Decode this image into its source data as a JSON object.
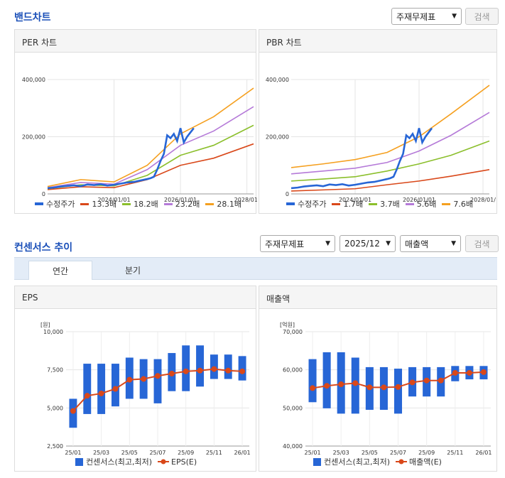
{
  "band": {
    "title": "밴드차트",
    "select": "주재무제표",
    "search": "검색",
    "per": {
      "title": "PER 차트",
      "legend": [
        {
          "label": "수정주가",
          "color": "#2766d6"
        },
        {
          "label": "13.3배",
          "color": "#d9481a"
        },
        {
          "label": "18.2배",
          "color": "#8bbf2c"
        },
        {
          "label": "23.2배",
          "color": "#b57ad8"
        },
        {
          "label": "28.1배",
          "color": "#f5a020"
        }
      ]
    },
    "pbr": {
      "title": "PBR 차트",
      "legend": [
        {
          "label": "수정주가",
          "color": "#2766d6"
        },
        {
          "label": "1.7배",
          "color": "#d9481a"
        },
        {
          "label": "3.7배",
          "color": "#8bbf2c"
        },
        {
          "label": "5.6배",
          "color": "#b57ad8"
        },
        {
          "label": "7.6배",
          "color": "#f5a020"
        }
      ]
    }
  },
  "consensus": {
    "title": "컨센서스 추이",
    "select1": "주재무제표",
    "select2": "2025/12",
    "select3": "매출액",
    "search": "검색",
    "tabs": [
      "연간",
      "분기"
    ],
    "eps": {
      "title": "EPS",
      "legend": [
        "컨센서스(최고,최저)",
        "EPS(E)"
      ]
    },
    "sales": {
      "title": "매출액",
      "legend": [
        "컨센서스(최고,최저)",
        "매출액(E)"
      ]
    }
  },
  "chart_data": [
    {
      "type": "line",
      "id": "per",
      "x_ticks": [
        "2024/01/01",
        "2026/01/01",
        "2028/01/"
      ],
      "y_ticks": [
        "0",
        "200,000",
        "400,000"
      ],
      "ylim": [
        0,
        400000
      ],
      "x": [
        2022.0,
        2023.0,
        2024.0,
        2025.0,
        2026.0,
        2027.0,
        2028.2
      ],
      "series": [
        {
          "name": "13.3배",
          "values": [
            15000,
            25000,
            22000,
            50000,
            100000,
            125000,
            175000
          ]
        },
        {
          "name": "18.2배",
          "values": [
            18000,
            32000,
            28000,
            65000,
            135000,
            170000,
            240000
          ]
        },
        {
          "name": "23.2배",
          "values": [
            22000,
            40000,
            34000,
            85000,
            170000,
            220000,
            305000
          ]
        },
        {
          "name": "28.1배",
          "values": [
            26000,
            50000,
            42000,
            100000,
            210000,
            270000,
            370000
          ]
        }
      ],
      "price": {
        "name": "수정주가",
        "x": [
          2022.0,
          2022.2,
          2022.4,
          2022.6,
          2022.8,
          2023.0,
          2023.2,
          2023.4,
          2023.6,
          2023.8,
          2024.0,
          2024.2,
          2024.4,
          2024.6,
          2024.8,
          2025.0,
          2025.1,
          2025.2,
          2025.3,
          2025.4,
          2025.5,
          2025.6,
          2025.7,
          2025.8,
          2025.9,
          2026.0,
          2026.1,
          2026.2,
          2026.3,
          2026.4
        ],
        "values": [
          20000,
          22000,
          26000,
          28000,
          30000,
          27000,
          33000,
          31000,
          34000,
          29000,
          32000,
          36000,
          40000,
          42000,
          47000,
          52000,
          55000,
          60000,
          85000,
          115000,
          140000,
          205000,
          195000,
          210000,
          185000,
          230000,
          180000,
          200000,
          215000,
          230000
        ]
      }
    },
    {
      "type": "line",
      "id": "pbr",
      "x_ticks": [
        "2024/01/01",
        "2026/01/01",
        "2028/01/"
      ],
      "y_ticks": [
        "0",
        "200,000",
        "400,000"
      ],
      "ylim": [
        0,
        400000
      ],
      "x": [
        2022.0,
        2023.0,
        2024.0,
        2025.0,
        2026.0,
        2027.0,
        2028.2
      ],
      "series": [
        {
          "name": "1.7배",
          "values": [
            10000,
            14000,
            18000,
            32000,
            45000,
            62000,
            85000
          ]
        },
        {
          "name": "3.7배",
          "values": [
            45000,
            52000,
            60000,
            80000,
            105000,
            135000,
            185000
          ]
        },
        {
          "name": "5.6배",
          "values": [
            70000,
            80000,
            90000,
            110000,
            150000,
            205000,
            285000
          ]
        },
        {
          "name": "7.6배",
          "values": [
            92000,
            105000,
            120000,
            145000,
            200000,
            280000,
            380000
          ]
        }
      ],
      "price": {
        "name": "수정주가",
        "x": [
          2022.0,
          2022.2,
          2022.4,
          2022.6,
          2022.8,
          2023.0,
          2023.2,
          2023.4,
          2023.6,
          2023.8,
          2024.0,
          2024.2,
          2024.4,
          2024.6,
          2024.8,
          2025.0,
          2025.1,
          2025.2,
          2025.3,
          2025.4,
          2025.5,
          2025.6,
          2025.7,
          2025.8,
          2025.9,
          2026.0,
          2026.1,
          2026.2,
          2026.3,
          2026.4
        ],
        "values": [
          20000,
          22000,
          26000,
          28000,
          30000,
          27000,
          33000,
          31000,
          34000,
          29000,
          32000,
          36000,
          40000,
          42000,
          47000,
          52000,
          55000,
          60000,
          85000,
          115000,
          140000,
          205000,
          195000,
          210000,
          185000,
          230000,
          180000,
          200000,
          215000,
          230000
        ]
      }
    },
    {
      "type": "bar",
      "id": "eps",
      "unit": "[원]",
      "ylim": [
        2500,
        10000
      ],
      "y_ticks": [
        "2,500",
        "5,000",
        "7,500",
        "10,000"
      ],
      "x_ticks": [
        "25/01",
        "25/03",
        "25/05",
        "25/07",
        "25/09",
        "25/11",
        "26/01"
      ],
      "high": [
        5600,
        7900,
        7900,
        7900,
        8300,
        8200,
        8200,
        8600,
        9100,
        9100,
        8500,
        8500,
        8400
      ],
      "low": [
        3700,
        4600,
        4600,
        5100,
        5600,
        5600,
        5300,
        6100,
        6100,
        6400,
        6900,
        6900,
        6800
      ],
      "estimate": [
        4800,
        5800,
        5950,
        6250,
        6850,
        6900,
        7100,
        7250,
        7400,
        7450,
        7550,
        7450,
        7400
      ]
    },
    {
      "type": "bar",
      "id": "sales",
      "unit": "[억원]",
      "ylim": [
        40000,
        70000
      ],
      "y_ticks": [
        "40,000",
        "50,000",
        "60,000",
        "70,000"
      ],
      "x_ticks": [
        "25/01",
        "25/03",
        "25/05",
        "25/07",
        "25/09",
        "25/11",
        "26/01"
      ],
      "high": [
        62800,
        64600,
        64600,
        63200,
        60700,
        60700,
        60300,
        60700,
        60700,
        60700,
        61000,
        61000,
        61000
      ],
      "low": [
        51500,
        49900,
        48500,
        48500,
        49500,
        49500,
        48500,
        53000,
        53000,
        53000,
        57000,
        57500,
        57500
      ],
      "estimate": [
        55200,
        55800,
        56200,
        56500,
        55400,
        55400,
        55500,
        56700,
        57200,
        57200,
        59200,
        59200,
        59400
      ]
    }
  ]
}
